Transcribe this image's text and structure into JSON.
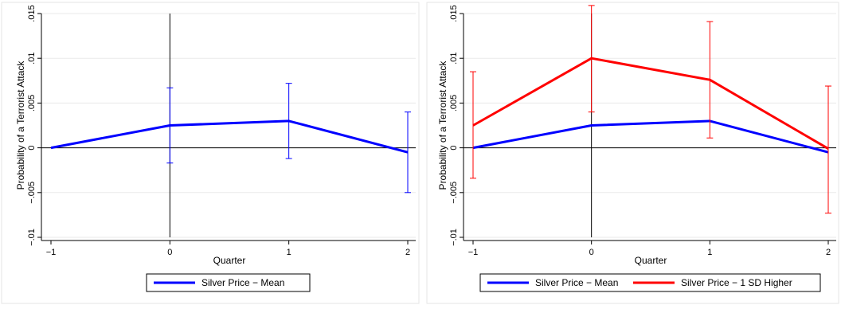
{
  "chart_data": [
    {
      "type": "line",
      "xlabel": "Quarter",
      "ylabel": "Probability of a Terrorist Attack",
      "xlim": [
        -1,
        2
      ],
      "ylim": [
        -0.01,
        0.015
      ],
      "x_ticks": [
        -1,
        0,
        1,
        2
      ],
      "x_tick_labels": [
        "−1",
        "0",
        "1",
        "2"
      ],
      "y_ticks": [
        -0.01,
        -0.005,
        0,
        0.005,
        0.01,
        0.015
      ],
      "y_tick_labels": [
        "−.01",
        "−.005",
        "0",
        ".005",
        ".01",
        ".015"
      ],
      "grid": "horizontal",
      "reference_lines": {
        "x": 0,
        "y": 0
      },
      "legend_position": "bottom",
      "series": [
        {
          "name": "Silver Price − Mean",
          "color": "#0000ff",
          "x": [
            -1,
            0,
            1,
            2
          ],
          "y": [
            0,
            0.0025,
            0.003,
            -0.0005
          ],
          "ci_low": [
            null,
            -0.0017,
            -0.0012,
            -0.005
          ],
          "ci_high": [
            null,
            0.0067,
            0.0072,
            0.004
          ]
        }
      ]
    },
    {
      "type": "line",
      "xlabel": "Quarter",
      "ylabel": "Probability of a Terrorist Attack",
      "xlim": [
        -1,
        2
      ],
      "ylim": [
        -0.01,
        0.015
      ],
      "x_ticks": [
        -1,
        0,
        1,
        2
      ],
      "x_tick_labels": [
        "−1",
        "0",
        "1",
        "2"
      ],
      "y_ticks": [
        -0.01,
        -0.005,
        0,
        0.005,
        0.01,
        0.015
      ],
      "y_tick_labels": [
        "−.01",
        "−.005",
        "0",
        ".005",
        ".01",
        ".015"
      ],
      "grid": "horizontal",
      "reference_lines": {
        "x": 0,
        "y": 0
      },
      "legend_position": "bottom",
      "series": [
        {
          "name": "Silver Price − Mean",
          "color": "#0000ff",
          "x": [
            -1,
            0,
            1,
            2
          ],
          "y": [
            0,
            0.0025,
            0.003,
            -0.0005
          ],
          "ci_low": [
            null,
            null,
            null,
            null
          ],
          "ci_high": [
            null,
            null,
            null,
            null
          ]
        },
        {
          "name": "Silver Price − 1 SD Higher",
          "color": "#ff0000",
          "x": [
            -1,
            0,
            1,
            2
          ],
          "y": [
            0.0025,
            0.01,
            0.0076,
            -0.0001
          ],
          "ci_low": [
            -0.0034,
            0.004,
            0.0011,
            -0.0073
          ],
          "ci_high": [
            0.0085,
            0.0159,
            0.0141,
            0.0069
          ]
        }
      ]
    }
  ]
}
